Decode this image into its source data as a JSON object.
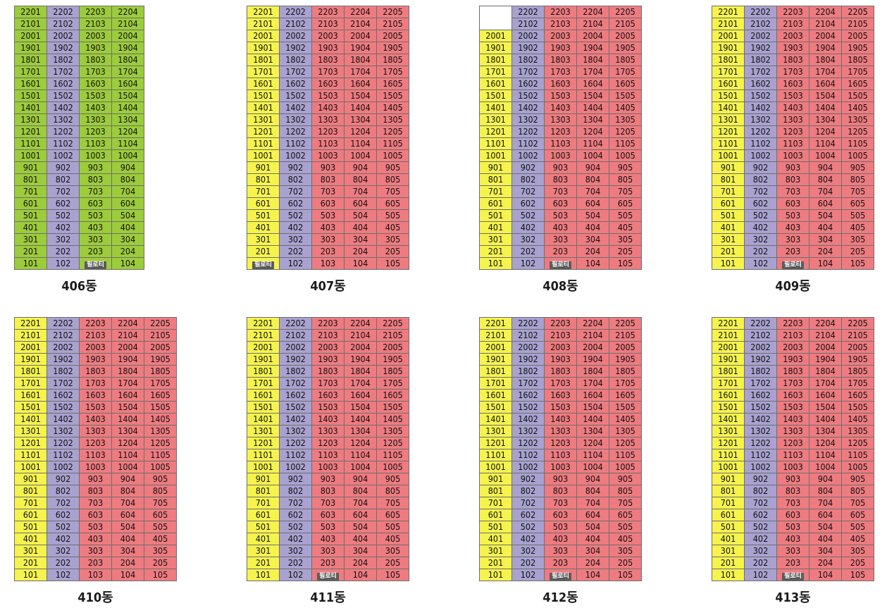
{
  "buildings": [
    {
      "name": "406동",
      "lines": [
        1,
        2,
        3,
        4
      ],
      "colors": {
        "1": "green",
        "2": "purple",
        "3": "green",
        "4": "green"
      },
      "piloti": {
        "103": "필로티"
      },
      "missing": []
    },
    {
      "name": "407동",
      "lines": [
        1,
        2,
        3,
        4,
        5
      ],
      "colors": {
        "1": "yellow",
        "2": "purple",
        "3": "red",
        "4": "red",
        "5": "red"
      },
      "piloti": {
        "101": "필로티"
      },
      "missing": []
    },
    {
      "name": "408동",
      "lines": [
        1,
        2,
        3,
        4,
        5
      ],
      "colors": {
        "1": "yellow",
        "2": "purple",
        "3": "red",
        "4": "red",
        "5": "red"
      },
      "piloti": {
        "103": "필로티"
      },
      "missing": [
        "2101",
        "2201"
      ]
    },
    {
      "name": "409동",
      "lines": [
        1,
        2,
        3,
        4,
        5
      ],
      "colors": {
        "1": "yellow",
        "2": "purple",
        "3": "red",
        "4": "red",
        "5": "red"
      },
      "piloti": {
        "103": "필로티"
      },
      "missing": []
    },
    {
      "name": "410동",
      "lines": [
        1,
        2,
        3,
        4,
        5
      ],
      "colors": {
        "1": "yellow",
        "2": "purple",
        "3": "red",
        "4": "red",
        "5": "red"
      },
      "piloti": {},
      "missing": []
    },
    {
      "name": "411동",
      "lines": [
        1,
        2,
        3,
        4,
        5
      ],
      "colors": {
        "1": "yellow",
        "2": "purple",
        "3": "red",
        "4": "red",
        "5": "red"
      },
      "piloti": {
        "103": "필로티"
      },
      "missing": []
    },
    {
      "name": "412동",
      "lines": [
        1,
        2,
        3,
        4,
        5
      ],
      "colors": {
        "1": "yellow",
        "2": "purple",
        "3": "red",
        "4": "red",
        "5": "red"
      },
      "piloti": {
        "103": "필로티"
      },
      "missing": []
    },
    {
      "name": "413동",
      "lines": [
        1,
        2,
        3,
        4,
        5
      ],
      "colors": {
        "1": "yellow",
        "2": "purple",
        "3": "red",
        "4": "red",
        "5": "red"
      },
      "piloti": {
        "103": "필로티"
      },
      "missing": []
    }
  ],
  "floors": [
    22,
    21,
    20,
    19,
    18,
    17,
    16,
    15,
    14,
    13,
    12,
    11,
    10,
    9,
    8,
    7,
    6,
    5,
    4,
    3,
    2,
    1
  ],
  "palette": {
    "yellow": "#f6f34d",
    "purple": "#a9a1cf",
    "red": "#ee7b80",
    "green": "#9ccc3a"
  }
}
